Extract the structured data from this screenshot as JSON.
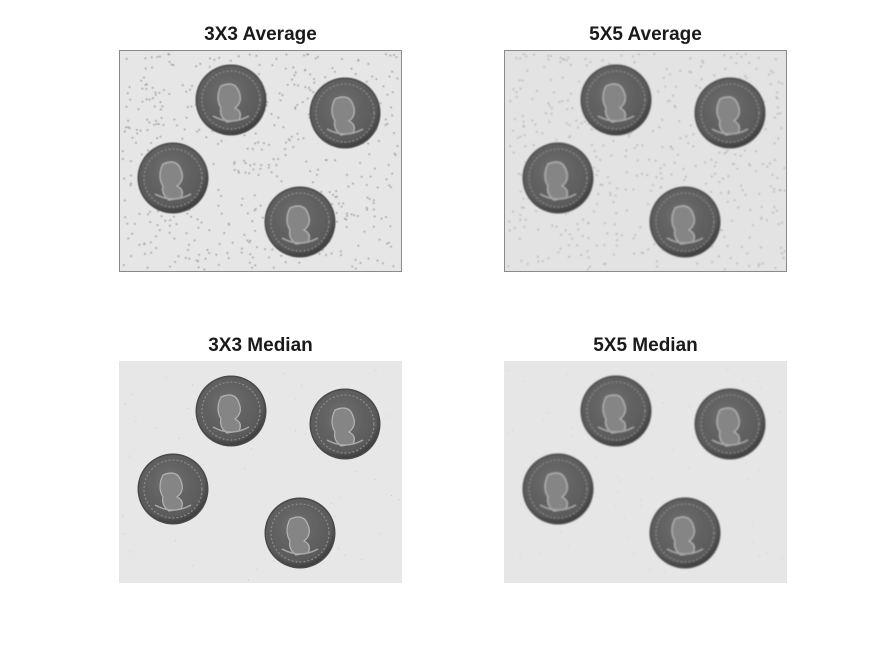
{
  "figure": {
    "panels": [
      {
        "title": "3X3 Average",
        "background": "#e6e6e6",
        "border": "#8a8a8a",
        "speckles": true,
        "speckleColor": "#9a9a9a",
        "blur": 0.4
      },
      {
        "title": "5X5 Average",
        "background": "#e3e3e3",
        "border": "#8a8a8a",
        "speckles": true,
        "speckleColor": "#b0b0b0",
        "blur": 0.9
      },
      {
        "title": "3X3 Median",
        "background": "#e7e7e7",
        "border": "#e7e7e7",
        "speckles": false,
        "speckleColor": "#aaaaaa",
        "blur": 0.3
      },
      {
        "title": "5X5 Median",
        "background": "#e6e6e6",
        "border": "#e6e6e6",
        "speckles": false,
        "speckleColor": "#aaaaaa",
        "blur": 0.8
      }
    ],
    "coin_color": "#6e6e6e",
    "coin_dark": "#3f3f3f"
  }
}
